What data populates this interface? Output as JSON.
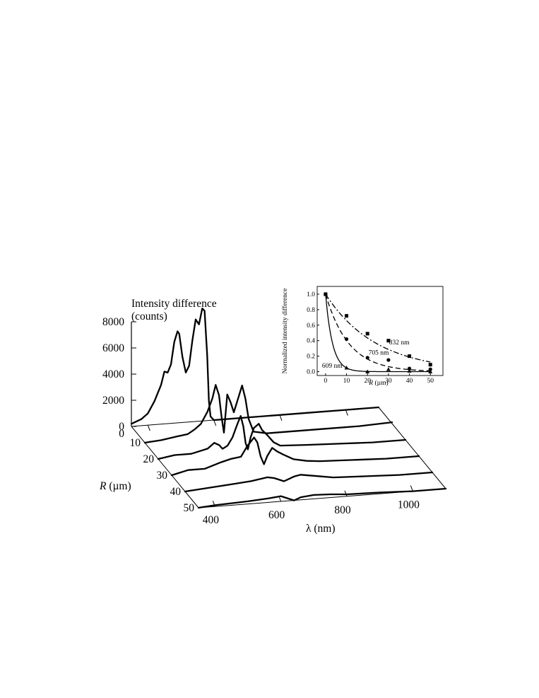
{
  "chart_data": [
    {
      "type": "line",
      "title": "",
      "ylabel_line1": "Intensity difference",
      "ylabel_line2": "(counts)",
      "xlabel": "λ (nm)",
      "zlabel_prefix": "R",
      "zlabel_suffix": " (µm)",
      "xlim": [
        350,
        1100
      ],
      "ylim": [
        0,
        9000
      ],
      "x_ticks": [
        400,
        600,
        800,
        1000
      ],
      "y_ticks": [
        0,
        2000,
        4000,
        6000,
        8000
      ],
      "r_ticks": [
        10,
        20,
        30,
        40,
        50
      ],
      "r_zero_label": "0",
      "series": [
        {
          "r": 0,
          "points": [
            [
              350,
              200
            ],
            [
              380,
              500
            ],
            [
              400,
              900
            ],
            [
              420,
              1800
            ],
            [
              440,
              3000
            ],
            [
              450,
              4000
            ],
            [
              460,
              3900
            ],
            [
              470,
              4500
            ],
            [
              480,
              6200
            ],
            [
              490,
              7000
            ],
            [
              495,
              6800
            ],
            [
              505,
              5000
            ],
            [
              515,
              3800
            ],
            [
              525,
              4300
            ],
            [
              535,
              6200
            ],
            [
              545,
              7800
            ],
            [
              555,
              7400
            ],
            [
              565,
              8600
            ],
            [
              572,
              8400
            ],
            [
              580,
              5000
            ],
            [
              585,
              1500
            ],
            [
              590,
              300
            ],
            [
              600,
              0
            ],
            [
              620,
              0
            ],
            [
              700,
              0
            ],
            [
              800,
              0
            ],
            [
              900,
              0
            ],
            [
              1000,
              0
            ],
            [
              1100,
              0
            ]
          ]
        },
        {
          "r": 10,
          "points": [
            [
              350,
              0
            ],
            [
              400,
              100
            ],
            [
              450,
              300
            ],
            [
              480,
              400
            ],
            [
              500,
              700
            ],
            [
              520,
              1100
            ],
            [
              540,
              2000
            ],
            [
              555,
              3000
            ],
            [
              565,
              4000
            ],
            [
              575,
              3200
            ],
            [
              583,
              1500
            ],
            [
              590,
              300
            ],
            [
              600,
              3200
            ],
            [
              610,
              2600
            ],
            [
              620,
              1800
            ],
            [
              630,
              2600
            ],
            [
              645,
              3800
            ],
            [
              655,
              2800
            ],
            [
              665,
              1200
            ],
            [
              680,
              200
            ],
            [
              720,
              0
            ],
            [
              800,
              0
            ],
            [
              900,
              0
            ],
            [
              1000,
              0
            ],
            [
              1100,
              100
            ]
          ]
        },
        {
          "r": 20,
          "points": [
            [
              350,
              0
            ],
            [
              400,
              200
            ],
            [
              450,
              200
            ],
            [
              500,
              500
            ],
            [
              520,
              900
            ],
            [
              535,
              700
            ],
            [
              545,
              400
            ],
            [
              560,
              600
            ],
            [
              575,
              1200
            ],
            [
              590,
              2200
            ],
            [
              600,
              2800
            ],
            [
              608,
              2000
            ],
            [
              615,
              700
            ],
            [
              622,
              200
            ],
            [
              630,
              1100
            ],
            [
              640,
              1800
            ],
            [
              655,
              2100
            ],
            [
              665,
              1600
            ],
            [
              680,
              1200
            ],
            [
              700,
              600
            ],
            [
              720,
              300
            ],
            [
              800,
              200
            ],
            [
              900,
              100
            ],
            [
              1000,
              0
            ],
            [
              1100,
              0
            ]
          ]
        },
        {
          "r": 30,
          "points": [
            [
              350,
              0
            ],
            [
              400,
              300
            ],
            [
              450,
              300
            ],
            [
              500,
              700
            ],
            [
              530,
              900
            ],
            [
              560,
              1000
            ],
            [
              580,
              1800
            ],
            [
              600,
              2400
            ],
            [
              610,
              2000
            ],
            [
              620,
              900
            ],
            [
              630,
              300
            ],
            [
              640,
              900
            ],
            [
              655,
              1500
            ],
            [
              670,
              1200
            ],
            [
              690,
              900
            ],
            [
              720,
              500
            ],
            [
              760,
              300
            ],
            [
              800,
              200
            ],
            [
              900,
              100
            ],
            [
              1000,
              0
            ],
            [
              1100,
              0
            ]
          ]
        },
        {
          "r": 40,
          "points": [
            [
              350,
              0
            ],
            [
              400,
              100
            ],
            [
              450,
              200
            ],
            [
              500,
              300
            ],
            [
              550,
              400
            ],
            [
              600,
              600
            ],
            [
              620,
              500
            ],
            [
              650,
              200
            ],
            [
              680,
              500
            ],
            [
              700,
              600
            ],
            [
              750,
              400
            ],
            [
              800,
              200
            ],
            [
              900,
              100
            ],
            [
              1000,
              0
            ],
            [
              1100,
              0
            ]
          ]
        },
        {
          "r": 50,
          "points": [
            [
              350,
              0
            ],
            [
              400,
              100
            ],
            [
              500,
              200
            ],
            [
              560,
              300
            ],
            [
              600,
              400
            ],
            [
              620,
              200
            ],
            [
              640,
              0
            ],
            [
              660,
              200
            ],
            [
              700,
              300
            ],
            [
              750,
              250
            ],
            [
              800,
              150
            ],
            [
              900,
              100
            ],
            [
              1000,
              0
            ],
            [
              1100,
              0
            ]
          ]
        }
      ]
    },
    {
      "type": "scatter",
      "title": "",
      "xlabel_prefix": "R",
      "xlabel_suffix": " (µm)",
      "ylabel": "Normalized intensity difference",
      "xlim": [
        -4,
        56
      ],
      "ylim": [
        -0.05,
        1.1
      ],
      "x_ticks": [
        0,
        10,
        20,
        30,
        40,
        50
      ],
      "y_ticks": [
        "0.0",
        "0.2",
        "0.4",
        "0.6",
        "0.8",
        "1.0"
      ],
      "series": [
        {
          "name": "832 nm",
          "marker": "square",
          "line": "dashdot",
          "decay": 24,
          "points": [
            [
              0,
              1.0
            ],
            [
              10,
              0.72
            ],
            [
              20,
              0.49
            ],
            [
              30,
              0.4
            ],
            [
              40,
              0.2
            ],
            [
              50,
              0.09
            ]
          ]
        },
        {
          "name": "705 nm",
          "marker": "circle",
          "line": "dashed",
          "decay": 11,
          "points": [
            [
              0,
              1.0
            ],
            [
              10,
              0.42
            ],
            [
              20,
              0.18
            ],
            [
              30,
              0.15
            ],
            [
              40,
              0.04
            ],
            [
              50,
              0.03
            ]
          ]
        },
        {
          "name": "609 nm",
          "marker": "triangle",
          "line": "solid",
          "decay": 3.3,
          "points": [
            [
              0,
              1.0
            ],
            [
              10,
              0.05
            ],
            [
              20,
              0.0
            ],
            [
              30,
              0.03
            ],
            [
              40,
              0.01
            ],
            [
              50,
              0.0
            ]
          ]
        }
      ]
    }
  ]
}
